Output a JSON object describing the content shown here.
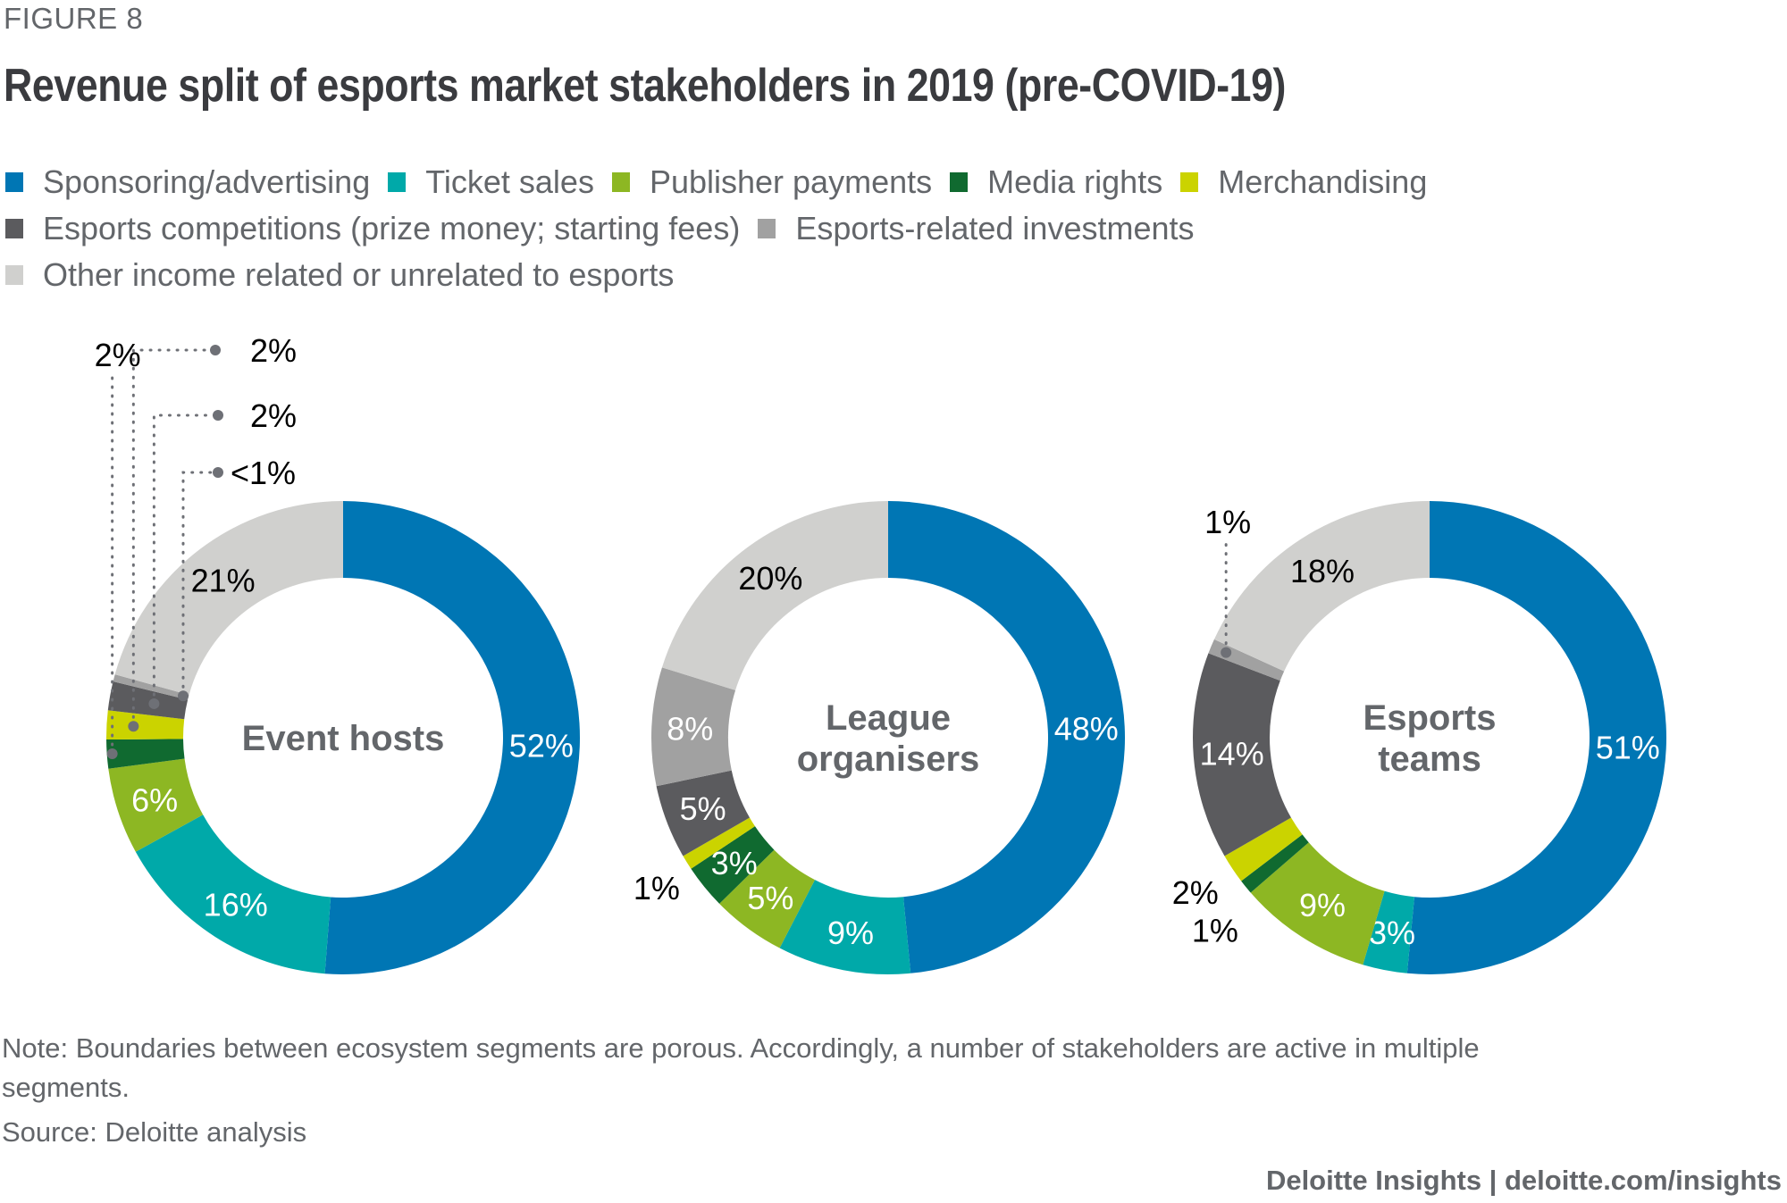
{
  "figure_label": "FIGURE 8",
  "title": "Revenue split of esports market stakeholders in 2019 (pre-COVID-19)",
  "legend": [
    {
      "label": "Sponsoring/advertising",
      "color": "#0076b4"
    },
    {
      "label": "Ticket sales",
      "color": "#00a9a9"
    },
    {
      "label": "Publisher payments",
      "color": "#8db723"
    },
    {
      "label": "Media rights",
      "color": "#106a30"
    },
    {
      "label": "Merchandising",
      "color": "#cbd300"
    },
    {
      "label": "Esports competitions (prize money; starting fees)",
      "color": "#5b5b5e"
    },
    {
      "label": "Esports-related investments",
      "color": "#a1a1a1"
    },
    {
      "label": "Other income related or unrelated to esports",
      "color": "#d0d0ce"
    }
  ],
  "chart_data": {
    "type": "pie",
    "variant": "donut",
    "title": "Revenue split of esports market stakeholders in 2019 (pre-COVID-19)",
    "categories": [
      "Sponsoring/advertising",
      "Ticket sales",
      "Publisher payments",
      "Media rights",
      "Merchandising",
      "Esports competitions (prize money; starting fees)",
      "Esports-related investments",
      "Other income related or unrelated to esports"
    ],
    "units": "percent",
    "charts": [
      {
        "name": "Event hosts",
        "center_label": [
          "Event hosts"
        ],
        "values": [
          52,
          16,
          6,
          2,
          2,
          2,
          0.5,
          21
        ],
        "labels": [
          "52%",
          "16%",
          "6%",
          "2%",
          "2%",
          "2%",
          "<1%",
          "21%"
        ]
      },
      {
        "name": "League organisers",
        "center_label": [
          "League",
          "organisers"
        ],
        "values": [
          48,
          9,
          5,
          3,
          1,
          5,
          8,
          20
        ],
        "labels": [
          "48%",
          "9%",
          "5%",
          "3%",
          "1%",
          "5%",
          "8%",
          "20%"
        ]
      },
      {
        "name": "Esports teams",
        "center_label": [
          "Esports",
          "teams"
        ],
        "values": [
          51,
          3,
          9,
          1,
          2,
          14,
          1,
          18
        ],
        "labels": [
          "51%",
          "3%",
          "9%",
          "1%",
          "2%",
          "14%",
          "1%",
          "18%"
        ]
      }
    ],
    "legend_position": "top-left"
  },
  "note": "Note: Boundaries between ecosystem segments are porous. Accordingly, a number of stakeholders are active in multiple segments.",
  "source": "Source: Deloitte analysis",
  "credit": "Deloitte Insights | deloitte.com/insights"
}
